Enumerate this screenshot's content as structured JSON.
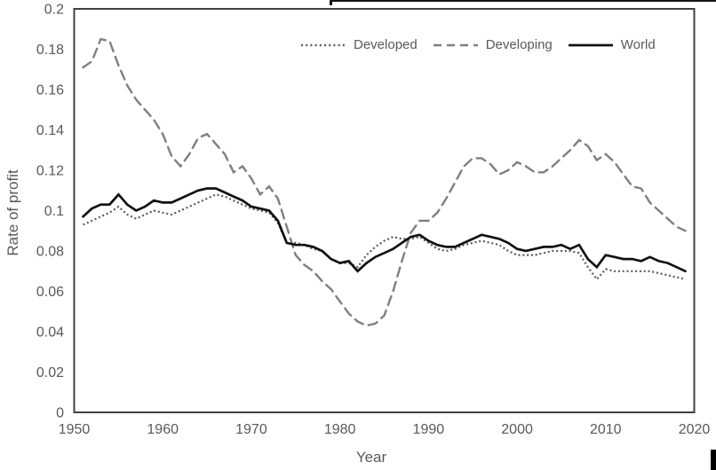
{
  "figure": {
    "y_axis_title": "Rate of profit",
    "x_axis_title": "Year"
  },
  "chart_data": {
    "type": "line",
    "title": "",
    "xlabel": "Year",
    "ylabel": "Rate of profit",
    "xlim": [
      1950,
      2020
    ],
    "ylim": [
      0,
      0.2
    ],
    "grid": false,
    "legend_position": "top-inside",
    "x_ticks": [
      "1950",
      "1960",
      "1970",
      "1980",
      "1990",
      "2000",
      "2010",
      "2020"
    ],
    "y_ticks": [
      "0",
      "0.02",
      "0.04",
      "0.06",
      "0.08",
      "0.1",
      "0.12",
      "0.14",
      "0.16",
      "0.18",
      "0.2"
    ],
    "x": [
      1951,
      1952,
      1953,
      1954,
      1955,
      1956,
      1957,
      1958,
      1959,
      1960,
      1961,
      1962,
      1963,
      1964,
      1965,
      1966,
      1967,
      1968,
      1969,
      1970,
      1971,
      1972,
      1973,
      1974,
      1975,
      1976,
      1977,
      1978,
      1979,
      1980,
      1981,
      1982,
      1983,
      1984,
      1985,
      1986,
      1987,
      1988,
      1989,
      1990,
      1991,
      1992,
      1993,
      1994,
      1995,
      1996,
      1997,
      1998,
      1999,
      2000,
      2001,
      2002,
      2003,
      2004,
      2005,
      2006,
      2007,
      2008,
      2009,
      2010,
      2011,
      2012,
      2013,
      2014,
      2015,
      2016,
      2017,
      2018,
      2019
    ],
    "series": [
      {
        "name": "Developed",
        "style": "dotted",
        "color": "#5a5a5a",
        "values": [
          0.093,
          0.095,
          0.097,
          0.099,
          0.102,
          0.098,
          0.096,
          0.098,
          0.1,
          0.099,
          0.098,
          0.1,
          0.102,
          0.104,
          0.106,
          0.108,
          0.107,
          0.105,
          0.103,
          0.101,
          0.1,
          0.099,
          0.094,
          0.084,
          0.084,
          0.083,
          0.081,
          0.08,
          0.076,
          0.074,
          0.074,
          0.072,
          0.078,
          0.082,
          0.085,
          0.087,
          0.086,
          0.086,
          0.087,
          0.084,
          0.081,
          0.08,
          0.081,
          0.083,
          0.084,
          0.085,
          0.084,
          0.083,
          0.08,
          0.078,
          0.078,
          0.078,
          0.079,
          0.08,
          0.08,
          0.08,
          0.079,
          0.072,
          0.066,
          0.071,
          0.07,
          0.07,
          0.07,
          0.07,
          0.07,
          0.069,
          0.068,
          0.067,
          0.066
        ]
      },
      {
        "name": "Developing",
        "style": "dashed",
        "color": "#7f7f7f",
        "values": [
          0.171,
          0.174,
          0.185,
          0.184,
          0.172,
          0.162,
          0.155,
          0.15,
          0.145,
          0.138,
          0.127,
          0.122,
          0.128,
          0.136,
          0.138,
          0.133,
          0.128,
          0.119,
          0.122,
          0.116,
          0.108,
          0.112,
          0.106,
          0.092,
          0.078,
          0.073,
          0.07,
          0.065,
          0.061,
          0.055,
          0.049,
          0.045,
          0.043,
          0.044,
          0.048,
          0.06,
          0.075,
          0.089,
          0.095,
          0.095,
          0.099,
          0.106,
          0.114,
          0.122,
          0.126,
          0.126,
          0.123,
          0.118,
          0.12,
          0.124,
          0.122,
          0.119,
          0.119,
          0.122,
          0.126,
          0.13,
          0.135,
          0.132,
          0.125,
          0.128,
          0.124,
          0.118,
          0.112,
          0.111,
          0.104,
          0.1,
          0.096,
          0.092,
          0.09
        ]
      },
      {
        "name": "World",
        "style": "solid",
        "color": "#111111",
        "values": [
          0.097,
          0.101,
          0.103,
          0.103,
          0.108,
          0.103,
          0.1,
          0.102,
          0.105,
          0.104,
          0.104,
          0.106,
          0.108,
          0.11,
          0.111,
          0.111,
          0.109,
          0.107,
          0.105,
          0.102,
          0.101,
          0.1,
          0.095,
          0.084,
          0.083,
          0.083,
          0.082,
          0.08,
          0.076,
          0.074,
          0.075,
          0.07,
          0.074,
          0.077,
          0.079,
          0.081,
          0.084,
          0.087,
          0.088,
          0.085,
          0.083,
          0.082,
          0.082,
          0.084,
          0.086,
          0.088,
          0.087,
          0.086,
          0.084,
          0.081,
          0.08,
          0.081,
          0.082,
          0.082,
          0.083,
          0.081,
          0.083,
          0.076,
          0.072,
          0.078,
          0.077,
          0.076,
          0.076,
          0.075,
          0.077,
          0.075,
          0.074,
          0.072,
          0.07
        ]
      }
    ]
  }
}
